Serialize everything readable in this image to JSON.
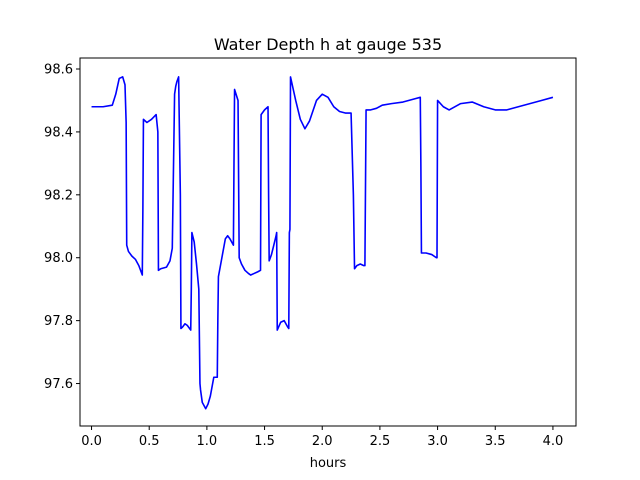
{
  "chart_data": {
    "type": "line",
    "title": "Water Depth h at gauge 535",
    "xlabel": "hours",
    "ylabel": "",
    "xlim": [
      -0.1,
      4.2
    ],
    "ylim": [
      97.465,
      98.635
    ],
    "grid": false,
    "xticks": [
      0.0,
      0.5,
      1.0,
      1.5,
      2.0,
      2.5,
      3.0,
      3.5,
      4.0
    ],
    "xtick_labels": [
      "0.0",
      "0.5",
      "1.0",
      "1.5",
      "2.0",
      "2.5",
      "3.0",
      "3.5",
      "4.0"
    ],
    "yticks": [
      97.6,
      97.8,
      98.0,
      98.2,
      98.4,
      98.6
    ],
    "ytick_labels": [
      "97.6",
      "97.8",
      "98.0",
      "98.2",
      "98.4",
      "98.6"
    ],
    "series": [
      {
        "color": "#0000ff",
        "x": [
          0.0,
          0.1,
          0.18,
          0.21,
          0.24,
          0.27,
          0.29,
          0.3,
          0.305,
          0.32,
          0.35,
          0.38,
          0.41,
          0.44,
          0.445,
          0.45,
          0.48,
          0.52,
          0.56,
          0.575,
          0.58,
          0.6,
          0.65,
          0.68,
          0.7,
          0.72,
          0.73,
          0.74,
          0.755,
          0.77,
          0.775,
          0.79,
          0.81,
          0.83,
          0.86,
          0.865,
          0.87,
          0.89,
          0.91,
          0.93,
          0.94,
          0.945,
          0.96,
          0.99,
          1.01,
          1.03,
          1.06,
          1.09,
          1.095,
          1.1,
          1.13,
          1.16,
          1.18,
          1.2,
          1.23,
          1.235,
          1.24,
          1.27,
          1.28,
          1.3,
          1.33,
          1.36,
          1.38,
          1.41,
          1.44,
          1.465,
          1.47,
          1.5,
          1.53,
          1.535,
          1.54,
          1.56,
          1.58,
          1.6,
          1.605,
          1.61,
          1.64,
          1.67,
          1.7,
          1.71,
          1.715,
          1.72,
          1.725,
          1.74,
          1.77,
          1.81,
          1.85,
          1.89,
          1.95,
          2.0,
          2.05,
          2.1,
          2.15,
          2.2,
          2.25,
          2.27,
          2.28,
          2.3,
          2.33,
          2.36,
          2.37,
          2.38,
          2.42,
          2.47,
          2.52,
          2.6,
          2.7,
          2.8,
          2.85,
          2.855,
          2.86,
          2.9,
          2.95,
          2.99,
          2.995,
          3.0,
          3.05,
          3.1,
          3.2,
          3.3,
          3.4,
          3.5,
          3.6,
          3.7,
          3.8,
          3.9,
          4.0
        ],
        "y": [
          98.48,
          98.48,
          98.485,
          98.52,
          98.57,
          98.575,
          98.55,
          98.43,
          98.04,
          98.02,
          98.005,
          97.995,
          97.975,
          97.945,
          98.15,
          98.44,
          98.43,
          98.44,
          98.455,
          98.4,
          97.96,
          97.965,
          97.97,
          97.99,
          98.03,
          98.52,
          98.545,
          98.56,
          98.575,
          98.2,
          97.775,
          97.78,
          97.79,
          97.785,
          97.77,
          97.9,
          98.08,
          98.05,
          97.98,
          97.9,
          97.6,
          97.58,
          97.54,
          97.52,
          97.535,
          97.56,
          97.62,
          97.62,
          97.8,
          97.94,
          98.0,
          98.06,
          98.07,
          98.06,
          98.04,
          98.3,
          98.535,
          98.5,
          98.0,
          97.98,
          97.96,
          97.95,
          97.945,
          97.95,
          97.955,
          97.96,
          98.455,
          98.47,
          98.48,
          98.2,
          97.99,
          98.01,
          98.04,
          98.07,
          98.08,
          97.77,
          97.795,
          97.8,
          97.78,
          97.775,
          98.08,
          98.09,
          98.575,
          98.55,
          98.5,
          98.44,
          98.41,
          98.435,
          98.5,
          98.52,
          98.51,
          98.48,
          98.465,
          98.46,
          98.46,
          98.2,
          97.965,
          97.975,
          97.98,
          97.975,
          97.975,
          98.47,
          98.47,
          98.475,
          98.485,
          98.49,
          98.495,
          98.505,
          98.51,
          98.3,
          98.015,
          98.015,
          98.01,
          98.0,
          98.0,
          98.5,
          98.48,
          98.47,
          98.49,
          98.495,
          98.48,
          98.47,
          98.47,
          98.48,
          98.49,
          98.5,
          98.51
        ]
      }
    ]
  }
}
